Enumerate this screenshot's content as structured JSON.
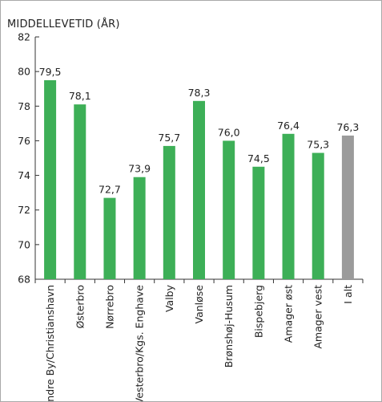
{
  "chart_data": {
    "type": "bar",
    "ylabel": "MIDDELLEVETID (ÅR)",
    "ylim": [
      68,
      82
    ],
    "yticks": [
      68,
      70,
      72,
      74,
      76,
      78,
      80,
      82
    ],
    "categories": [
      "Indre By/Christianshavn",
      "Østerbro",
      "Nørrebro",
      "Vesterbro/Kgs. Enghave",
      "Valby",
      "Vanløse",
      "Brønshøj-Husum",
      "Bispebjerg",
      "Amager øst",
      "Amager vest",
      "I alt"
    ],
    "values": [
      79.5,
      78.1,
      72.7,
      73.9,
      75.7,
      78.3,
      76.0,
      74.5,
      76.4,
      75.3,
      76.3
    ],
    "value_labels": [
      "79,5",
      "78,1",
      "72,7",
      "73,9",
      "75,7",
      "78,3",
      "76,0",
      "74,5",
      "76,4",
      "75,3",
      "76,3"
    ],
    "colors": {
      "bar": "#3daf57",
      "total_bar": "#9b9b9b",
      "axis": "#333333"
    },
    "grid": false,
    "legend": "none"
  }
}
